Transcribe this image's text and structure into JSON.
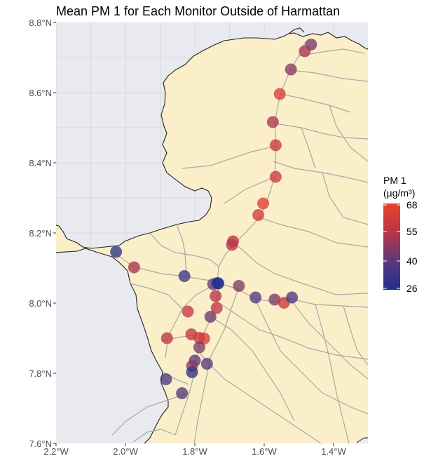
{
  "title": "Mean PM 1 for Each Monitor Outside of Harmattan",
  "legend": {
    "title_line1": "PM 1",
    "title_line2": "(µg/m³)",
    "ticks": [
      "68",
      "55",
      "40",
      "26"
    ],
    "min": 26,
    "max": 68,
    "gradient": [
      "#1f2f8f",
      "#5a3a7a",
      "#c03545",
      "#e8432d"
    ]
  },
  "axes": {
    "x_ticks": [
      "2.2°W",
      "2.0°W",
      "1.8°W",
      "1.6°W",
      "1.4°W"
    ],
    "y_ticks": [
      "8.8°N",
      "8.6°N",
      "8.4°N",
      "8.2°N",
      "8.0°N",
      "7.8°N",
      "7.6°N"
    ]
  },
  "colors": {
    "land": "#faefc9",
    "water": "#e8eaf0",
    "roads": "#a8a8a8",
    "grid": "#d9d9dc"
  },
  "chart_data": {
    "type": "scatter",
    "xlabel": "",
    "ylabel": "",
    "xlim": [
      -2.2,
      -1.3
    ],
    "ylim": [
      7.6,
      8.8
    ],
    "points": [
      {
        "lon": -1.465,
        "lat": 8.737,
        "pm1": 44
      },
      {
        "lon": -1.483,
        "lat": 8.718,
        "pm1": 52
      },
      {
        "lon": -1.523,
        "lat": 8.666,
        "pm1": 47
      },
      {
        "lon": -1.555,
        "lat": 8.596,
        "pm1": 63
      },
      {
        "lon": -1.575,
        "lat": 8.516,
        "pm1": 52
      },
      {
        "lon": -1.567,
        "lat": 8.45,
        "pm1": 58
      },
      {
        "lon": -1.567,
        "lat": 8.36,
        "pm1": 58
      },
      {
        "lon": -1.603,
        "lat": 8.284,
        "pm1": 65
      },
      {
        "lon": -1.617,
        "lat": 8.251,
        "pm1": 62
      },
      {
        "lon": -1.69,
        "lat": 8.176,
        "pm1": 54
      },
      {
        "lon": -1.693,
        "lat": 8.166,
        "pm1": 55
      },
      {
        "lon": -2.027,
        "lat": 8.146,
        "pm1": 30
      },
      {
        "lon": -1.975,
        "lat": 8.102,
        "pm1": 52
      },
      {
        "lon": -1.83,
        "lat": 8.077,
        "pm1": 33
      },
      {
        "lon": -1.747,
        "lat": 8.054,
        "pm1": 42
      },
      {
        "lon": -1.735,
        "lat": 8.057,
        "pm1": 30
      },
      {
        "lon": -1.732,
        "lat": 8.056,
        "pm1": 26
      },
      {
        "lon": -1.673,
        "lat": 8.049,
        "pm1": 46
      },
      {
        "lon": -1.74,
        "lat": 8.02,
        "pm1": 54
      },
      {
        "lon": -1.737,
        "lat": 7.986,
        "pm1": 56
      },
      {
        "lon": -1.625,
        "lat": 8.016,
        "pm1": 38
      },
      {
        "lon": -1.57,
        "lat": 8.01,
        "pm1": 45
      },
      {
        "lon": -1.543,
        "lat": 8.001,
        "pm1": 58
      },
      {
        "lon": -1.52,
        "lat": 8.016,
        "pm1": 36
      },
      {
        "lon": -1.82,
        "lat": 7.976,
        "pm1": 58
      },
      {
        "lon": -1.755,
        "lat": 7.961,
        "pm1": 43
      },
      {
        "lon": -1.81,
        "lat": 7.911,
        "pm1": 56
      },
      {
        "lon": -1.787,
        "lat": 7.901,
        "pm1": 58
      },
      {
        "lon": -1.773,
        "lat": 7.899,
        "pm1": 62
      },
      {
        "lon": -1.88,
        "lat": 7.9,
        "pm1": 56
      },
      {
        "lon": -1.787,
        "lat": 7.874,
        "pm1": 46
      },
      {
        "lon": -1.8,
        "lat": 7.836,
        "pm1": 40
      },
      {
        "lon": -1.765,
        "lat": 7.827,
        "pm1": 40
      },
      {
        "lon": -1.808,
        "lat": 7.821,
        "pm1": 48
      },
      {
        "lon": -1.808,
        "lat": 7.803,
        "pm1": 30
      },
      {
        "lon": -1.883,
        "lat": 7.783,
        "pm1": 36
      },
      {
        "lon": -1.837,
        "lat": 7.743,
        "pm1": 39
      }
    ]
  }
}
